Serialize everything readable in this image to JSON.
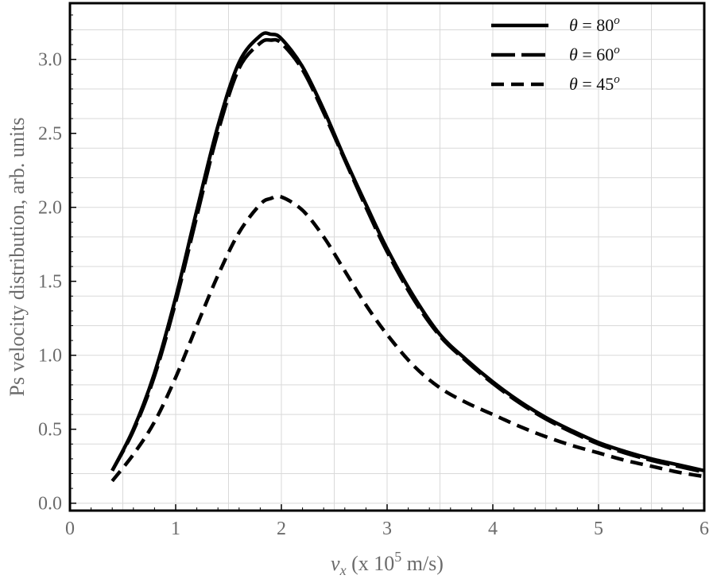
{
  "chart_data": {
    "type": "line",
    "xlabel_var": "v",
    "xlabel_sub": "x",
    "xlabel_pre": " (x 10",
    "xlabel_sup": "5",
    "xlabel_post": " m/s)",
    "ylabel": "Ps velocity distribution, arb. units",
    "xlim": [
      0,
      6
    ],
    "ylim": [
      -0.05,
      3.38
    ],
    "xticks": [
      0,
      1,
      2,
      3,
      4,
      5,
      6
    ],
    "xtick_labels": [
      "0",
      "1",
      "2",
      "3",
      "4",
      "5",
      "6"
    ],
    "yticks": [
      0,
      0.5,
      1,
      1.5,
      2,
      2.5,
      3
    ],
    "ytick_labels": [
      "0.0",
      "0.5",
      "1.0",
      "1.5",
      "2.0",
      "2.5",
      "3.0"
    ],
    "grid": true,
    "legend_position": "top-right",
    "x": [
      0.4,
      0.6,
      0.8,
      1.0,
      1.2,
      1.4,
      1.6,
      1.8,
      1.9,
      2.0,
      2.2,
      2.4,
      2.6,
      2.8,
      3.0,
      3.25,
      3.5,
      3.75,
      4.0,
      4.25,
      4.5,
      4.75,
      5.0,
      5.25,
      5.5,
      5.75,
      6.0
    ],
    "series": [
      {
        "name_var": "θ",
        "name_eq": " = 80",
        "name_sup": "o",
        "dash": "solid",
        "values": [
          0.22,
          0.5,
          0.88,
          1.39,
          1.98,
          2.55,
          2.98,
          3.16,
          3.17,
          3.14,
          2.95,
          2.66,
          2.33,
          2.02,
          1.72,
          1.4,
          1.14,
          0.97,
          0.82,
          0.69,
          0.58,
          0.49,
          0.41,
          0.35,
          0.3,
          0.26,
          0.22
        ]
      },
      {
        "name_var": "θ",
        "name_eq": " = 60",
        "name_sup": "o",
        "dash": "long",
        "values": [
          0.22,
          0.49,
          0.86,
          1.36,
          1.94,
          2.51,
          2.94,
          3.11,
          3.13,
          3.11,
          2.93,
          2.64,
          2.32,
          2.0,
          1.7,
          1.38,
          1.13,
          0.96,
          0.81,
          0.68,
          0.57,
          0.48,
          0.4,
          0.34,
          0.29,
          0.25,
          0.21
        ]
      },
      {
        "name_var": "θ",
        "name_eq": " = 45",
        "name_sup": "o",
        "dash": "short",
        "values": [
          0.15,
          0.33,
          0.55,
          0.85,
          1.2,
          1.54,
          1.83,
          2.02,
          2.06,
          2.07,
          1.98,
          1.8,
          1.57,
          1.34,
          1.14,
          0.93,
          0.78,
          0.68,
          0.6,
          0.52,
          0.45,
          0.39,
          0.34,
          0.29,
          0.25,
          0.21,
          0.18
        ]
      }
    ]
  },
  "colors": {
    "line": "#000000",
    "grid": "#d9d9d9",
    "text": "#6b6b6b"
  }
}
